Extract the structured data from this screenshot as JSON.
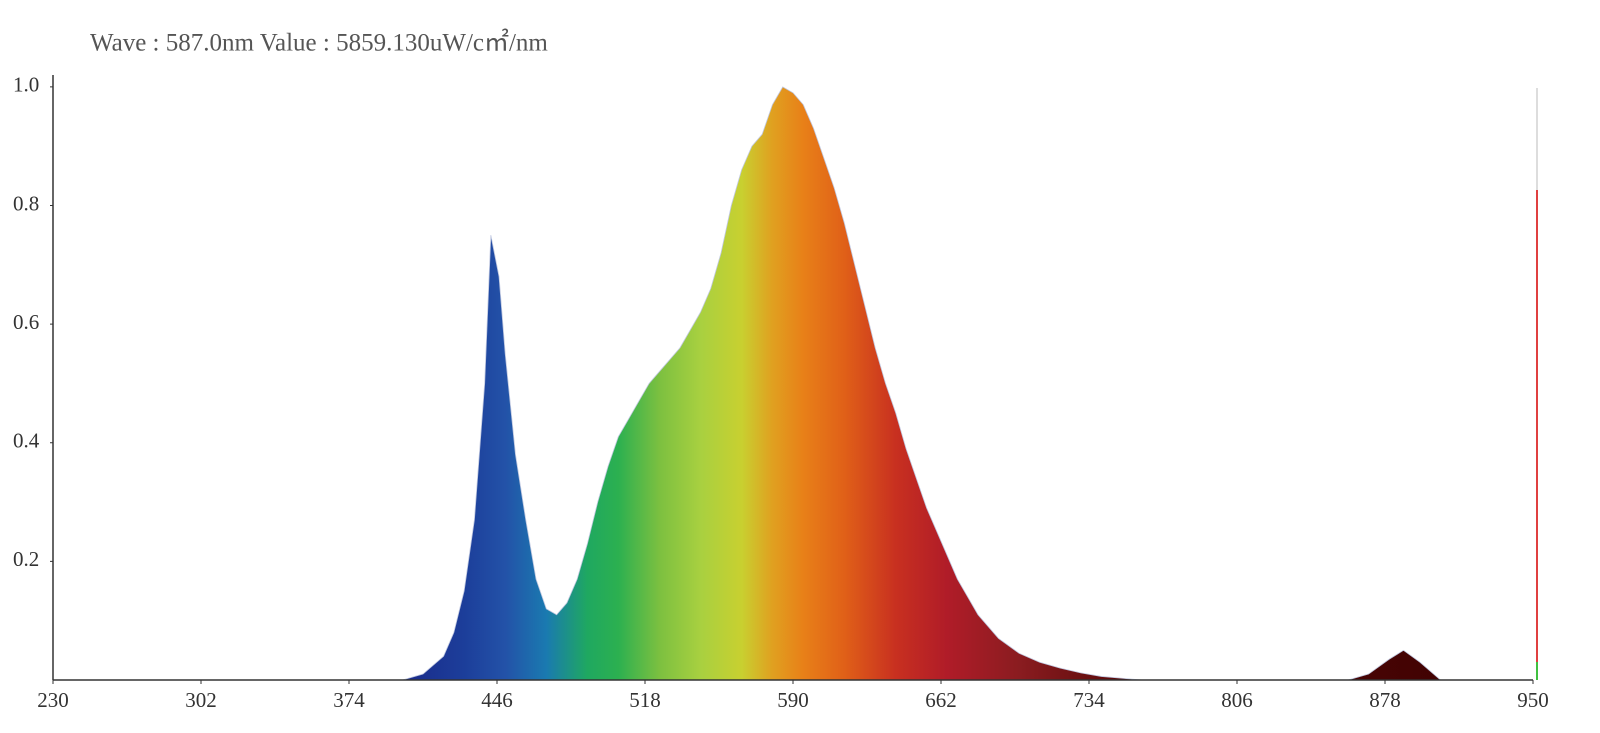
{
  "chart_data": {
    "type": "area",
    "annotation": "Wave : 587.0nm  Value : 5859.130uW/c㎡/nm",
    "colormap": "wavelength",
    "xlim": [
      230,
      950
    ],
    "xticks": [
      230,
      302,
      374,
      446,
      518,
      590,
      662,
      734,
      806,
      878,
      950
    ],
    "ylim": [
      0,
      1.02
    ],
    "yticks": [
      0.2,
      0.4,
      0.6,
      0.8,
      {
        "value": 1,
        "label": "1.0"
      }
    ],
    "x": [
      230,
      400,
      410,
      420,
      425,
      430,
      435,
      440,
      443,
      447,
      450,
      455,
      460,
      465,
      470,
      475,
      480,
      485,
      490,
      495,
      500,
      505,
      510,
      515,
      520,
      525,
      530,
      535,
      540,
      545,
      550,
      555,
      560,
      565,
      570,
      575,
      580,
      585,
      590,
      595,
      600,
      605,
      610,
      615,
      620,
      625,
      630,
      635,
      640,
      645,
      650,
      655,
      660,
      665,
      670,
      675,
      680,
      690,
      700,
      710,
      720,
      730,
      740,
      750,
      760,
      860,
      870,
      880,
      887,
      895,
      905,
      950
    ],
    "values": [
      0,
      0,
      0.01,
      0.04,
      0.08,
      0.15,
      0.27,
      0.5,
      0.75,
      0.68,
      0.55,
      0.38,
      0.27,
      0.17,
      0.12,
      0.11,
      0.13,
      0.17,
      0.23,
      0.3,
      0.36,
      0.41,
      0.44,
      0.47,
      0.5,
      0.52,
      0.54,
      0.56,
      0.59,
      0.62,
      0.66,
      0.72,
      0.8,
      0.86,
      0.9,
      0.92,
      0.97,
      1.0,
      0.99,
      0.97,
      0.93,
      0.88,
      0.83,
      0.77,
      0.7,
      0.63,
      0.56,
      0.5,
      0.45,
      0.39,
      0.34,
      0.29,
      0.25,
      0.21,
      0.17,
      0.14,
      0.11,
      0.07,
      0.045,
      0.03,
      0.02,
      0.012,
      0.006,
      0.003,
      0,
      0,
      0.01,
      0.035,
      0.05,
      0.03,
      0,
      0
    ]
  }
}
